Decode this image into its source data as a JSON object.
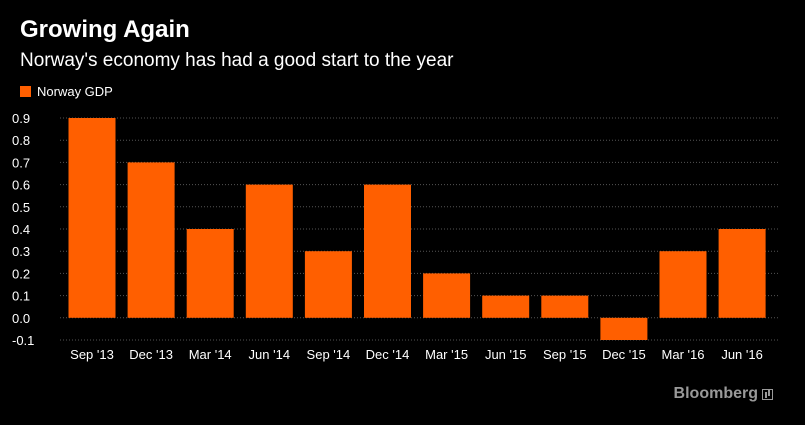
{
  "title": "Growing Again",
  "subtitle": "Norway's economy has had a good start to the year",
  "brand": "Bloomberg",
  "chart_data": {
    "type": "bar",
    "categories": [
      "Sep '13",
      "Dec '13",
      "Mar '14",
      "Jun '14",
      "Sep '14",
      "Dec '14",
      "Mar '15",
      "Jun '15",
      "Sep '15",
      "Dec '15",
      "Mar '16",
      "Jun '16"
    ],
    "series": [
      {
        "name": "Norway GDP",
        "color": "#ff5f00",
        "values": [
          0.9,
          0.7,
          0.4,
          0.6,
          0.3,
          0.6,
          0.2,
          0.1,
          0.1,
          -0.1,
          0.3,
          0.4
        ]
      }
    ],
    "yticks": [
      "-0.1",
      "0.0",
      "0.1",
      "0.2",
      "0.3",
      "0.4",
      "0.5",
      "0.6",
      "0.7",
      "0.8",
      "0.9"
    ],
    "ylim": [
      -0.1,
      0.9
    ],
    "grid": true,
    "legend_position": "top-left",
    "background_color": "#000000",
    "grid_color": "#555555"
  }
}
